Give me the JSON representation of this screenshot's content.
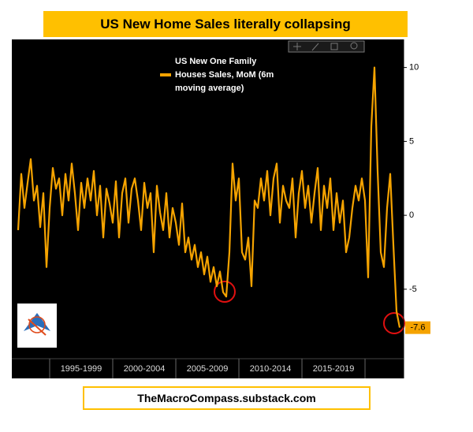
{
  "chart_data": {
    "type": "line",
    "title": "US New Home Sales literally collapsing",
    "footer": "TheMacroCompass.substack.com",
    "x": [
      1992.5,
      1992.75,
      1993,
      1993.25,
      1993.5,
      1993.75,
      1994,
      1994.25,
      1994.5,
      1994.75,
      1995,
      1995.25,
      1995.5,
      1995.75,
      1996,
      1996.25,
      1996.5,
      1996.75,
      1997,
      1997.25,
      1997.5,
      1997.75,
      1998,
      1998.25,
      1998.5,
      1998.75,
      1999,
      1999.25,
      1999.5,
      1999.75,
      2000,
      2000.25,
      2000.5,
      2000.75,
      2001,
      2001.25,
      2001.5,
      2001.75,
      2002,
      2002.25,
      2002.5,
      2002.75,
      2003,
      2003.25,
      2003.5,
      2003.75,
      2004,
      2004.25,
      2004.5,
      2004.75,
      2005,
      2005.25,
      2005.5,
      2005.75,
      2006,
      2006.25,
      2006.5,
      2006.75,
      2007,
      2007.25,
      2007.5,
      2007.75,
      2008,
      2008.25,
      2008.5,
      2008.75,
      2009,
      2009.25,
      2009.5,
      2009.75,
      2010,
      2010.25,
      2010.5,
      2010.75,
      2011,
      2011.25,
      2011.5,
      2011.75,
      2012,
      2012.25,
      2012.5,
      2012.75,
      2013,
      2013.25,
      2013.5,
      2013.75,
      2014,
      2014.25,
      2014.5,
      2014.75,
      2015,
      2015.25,
      2015.5,
      2015.75,
      2016,
      2016.25,
      2016.5,
      2016.75,
      2017,
      2017.25,
      2017.5,
      2017.75,
      2018,
      2018.25,
      2018.5,
      2018.75,
      2019,
      2019.25,
      2019.5,
      2019.75,
      2020,
      2020.25,
      2020.5,
      2020.75,
      2021,
      2021.25,
      2021.5,
      2021.75,
      2022,
      2022.25,
      2022.5,
      2022.75
    ],
    "series": [
      {
        "name": "US New One Family Houses Sales, MoM (6m moving average)",
        "color": "#f5a300",
        "values": [
          -1,
          2.8,
          0.5,
          2.2,
          3.8,
          1,
          2,
          -0.8,
          1.5,
          -3.5,
          0.5,
          3.2,
          1.8,
          2.5,
          0,
          2.8,
          1,
          3.5,
          1.5,
          -1,
          2.2,
          0.5,
          2.5,
          1,
          3,
          0,
          2,
          -1.5,
          1.8,
          0.8,
          -0.5,
          2.3,
          -1.5,
          1.5,
          2.5,
          -0.5,
          1.8,
          2.5,
          1,
          -1,
          2.2,
          0.5,
          1.5,
          -2.5,
          2,
          0.2,
          -1,
          1.5,
          -1.5,
          0.5,
          -0.5,
          -2,
          0.8,
          -2.5,
          -1.5,
          -3,
          -2,
          -3.5,
          -2.5,
          -4,
          -2.8,
          -4.5,
          -3.5,
          -4.8,
          -3.8,
          -5.2,
          -5.5,
          -2.5,
          3.5,
          1,
          2.5,
          -2.5,
          -3,
          -1.5,
          -4.8,
          1,
          0.5,
          2.5,
          1,
          3,
          0,
          2.5,
          3.5,
          -0.5,
          2,
          1,
          0.5,
          2.5,
          -1.5,
          1.5,
          3,
          0.5,
          2,
          -0.5,
          1.5,
          3.2,
          -1,
          2,
          0.5,
          2.5,
          -1,
          1.5,
          -0.5,
          1,
          -2.5,
          -1.5,
          0.5,
          2,
          1,
          2.5,
          1,
          -4.2,
          6,
          10,
          3,
          -2.5,
          -3.5,
          0.5,
          2.8,
          -2,
          -6.5,
          -7.6
        ]
      }
    ],
    "xlim": [
      1992,
      2023.06
    ],
    "xticks": [
      {
        "value": 1997.5,
        "label": "1995-1999"
      },
      {
        "value": 2002.5,
        "label": "2000-2004"
      },
      {
        "value": 2007.5,
        "label": "2005-2009"
      },
      {
        "value": 2012.5,
        "label": "2010-2014"
      },
      {
        "value": 2017.5,
        "label": "2015-2019"
      }
    ],
    "ylim": [
      -9.7,
      11.9
    ],
    "yticks": [
      10,
      5,
      0,
      -5
    ],
    "y_axis_side": "right"
  }
}
